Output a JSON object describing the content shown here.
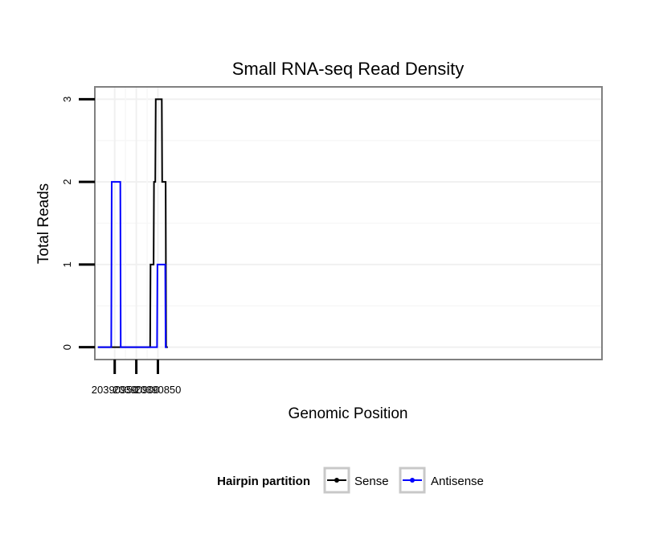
{
  "chart_data": {
    "type": "line",
    "title": "Small RNA-seq Read Density",
    "xlabel": "Genomic Position",
    "ylabel": "Total Reads",
    "x_reversed": true,
    "xlim": [
      20390996,
      20389822
    ],
    "ylim": [
      -0.15,
      3.15
    ],
    "x_ticks": [
      20390950,
      20390900,
      20390850
    ],
    "x_tick_labels": [
      "20390950",
      "20390900",
      "20390850"
    ],
    "y_ticks": [
      0,
      1,
      2,
      3
    ],
    "y_tick_labels": [
      "0",
      "1",
      "2",
      "3"
    ],
    "grid": true,
    "legend": {
      "title": "Hairpin partition",
      "placement": "bottom",
      "entries": [
        "Sense",
        "Antisense"
      ]
    },
    "series": [
      {
        "name": "Sense",
        "color": "#000000",
        "points": [
          [
            20390989,
            0
          ],
          [
            20390868,
            0
          ],
          [
            20390867,
            1
          ],
          [
            20390860,
            1
          ],
          [
            20390859,
            2
          ],
          [
            20390856,
            2
          ],
          [
            20390855,
            3
          ],
          [
            20390841,
            3
          ],
          [
            20390840,
            2
          ],
          [
            20390832,
            2
          ],
          [
            20390831,
            0
          ],
          [
            20390827,
            0
          ]
        ]
      },
      {
        "name": "Antisense",
        "color": "#0000ff",
        "points": [
          [
            20390989,
            0
          ],
          [
            20390958,
            0
          ],
          [
            20390957,
            2
          ],
          [
            20390937,
            2
          ],
          [
            20390936,
            0
          ],
          [
            20390868,
            0
          ],
          [
            20390852,
            0
          ],
          [
            20390851,
            1
          ],
          [
            20390833,
            1
          ],
          [
            20390832,
            0
          ],
          [
            20390829,
            0
          ]
        ]
      }
    ]
  }
}
